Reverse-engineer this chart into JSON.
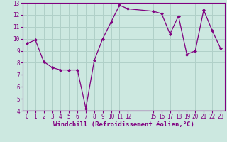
{
  "x": [
    0,
    1,
    2,
    3,
    4,
    5,
    6,
    7,
    8,
    9,
    10,
    11,
    12,
    15,
    16,
    17,
    18,
    19,
    20,
    21,
    22,
    23
  ],
  "y": [
    9.6,
    9.9,
    8.1,
    7.6,
    7.4,
    7.4,
    7.4,
    4.2,
    8.2,
    10.0,
    11.4,
    12.8,
    12.5,
    12.3,
    12.1,
    10.4,
    11.9,
    8.7,
    9.0,
    12.4,
    10.7,
    9.2
  ],
  "line_color": "#800080",
  "marker": "D",
  "marker_size": 2.0,
  "linewidth": 0.9,
  "bg_color": "#cce8e0",
  "grid_color": "#b0d0c8",
  "xlabel": "Windchill (Refroidissement éolien,°C)",
  "xlabel_color": "#800080",
  "tick_color": "#800080",
  "ylim": [
    4,
    13
  ],
  "xlim": [
    -0.5,
    23.5
  ],
  "yticks": [
    4,
    5,
    6,
    7,
    8,
    9,
    10,
    11,
    12,
    13
  ],
  "xtick_positions": [
    0,
    1,
    2,
    3,
    4,
    5,
    6,
    7,
    8,
    9,
    10,
    11,
    12,
    15,
    16,
    17,
    18,
    19,
    20,
    21,
    22,
    23
  ],
  "xtick_labels": [
    "0",
    "1",
    "2",
    "3",
    "4",
    "5",
    "6",
    "7",
    "8",
    "9",
    "10",
    "11",
    "12",
    "15",
    "16",
    "17",
    "18",
    "19",
    "20",
    "21",
    "22",
    "23"
  ],
  "tick_fontsize": 5.5,
  "xlabel_fontsize": 6.5
}
